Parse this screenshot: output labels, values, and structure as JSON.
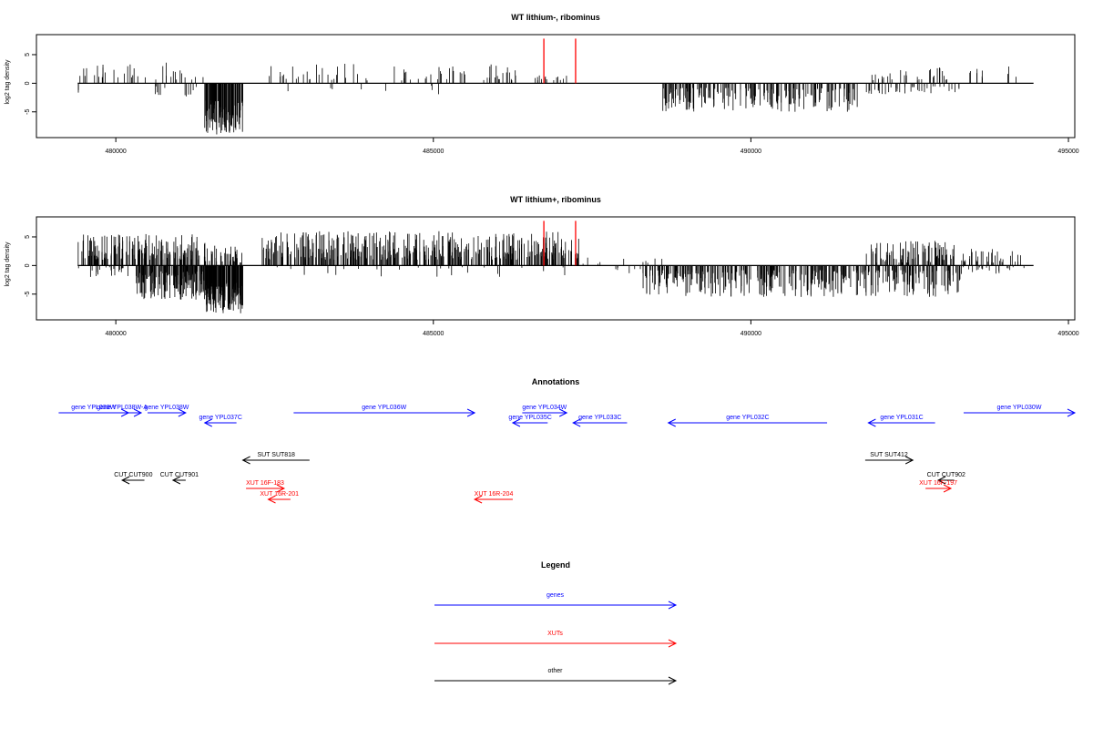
{
  "chart_data": [
    {
      "type": "bar",
      "title": "WT lithium-, ribominus",
      "ylabel": "log2 tag density",
      "xlim": [
        478750,
        495100
      ],
      "ylim": [
        -9.5,
        8.5
      ],
      "xticks": [
        480000,
        485000,
        490000,
        495000
      ],
      "yticks": [
        -5,
        0,
        5
      ],
      "grid": false,
      "highlight_color": "#ff0000",
      "bar_color": "#000000",
      "highlight_lines": [
        {
          "x": 486740,
          "y": 7.8
        },
        {
          "x": 487240,
          "y": 7.8
        }
      ],
      "density_segments": [
        {
          "x_start": 479400,
          "x_end": 480500,
          "strand": "+",
          "count": 22,
          "min": 1.0,
          "max": 3.5,
          "seed": 11
        },
        {
          "x_start": 480600,
          "x_end": 481400,
          "strand": "+",
          "count": 14,
          "min": 0.5,
          "max": 3.8,
          "seed": 12
        },
        {
          "x_start": 482400,
          "x_end": 486300,
          "strand": "+",
          "count": 70,
          "min": 0.5,
          "max": 3.5,
          "seed": 13
        },
        {
          "x_start": 486500,
          "x_end": 487200,
          "strand": "+",
          "count": 14,
          "min": 0.5,
          "max": 2.5,
          "seed": 14
        },
        {
          "x_start": 491900,
          "x_end": 493100,
          "strand": "+",
          "count": 30,
          "min": 0.5,
          "max": 2.8,
          "seed": 15
        },
        {
          "x_start": 493400,
          "x_end": 494400,
          "strand": "+",
          "count": 10,
          "min": 0.8,
          "max": 3.0,
          "seed": 16
        },
        {
          "x_start": 479400,
          "x_end": 479450,
          "strand": "-",
          "count": 2,
          "min": 1.0,
          "max": 3.0,
          "seed": 21
        },
        {
          "x_start": 480600,
          "x_end": 481300,
          "strand": "-",
          "count": 12,
          "min": 0.5,
          "max": 2.5,
          "seed": 22
        },
        {
          "x_start": 481400,
          "x_end": 482000,
          "strand": "-",
          "count": 120,
          "min": 3.0,
          "max": 9.0,
          "seed": 23
        },
        {
          "x_start": 482500,
          "x_end": 486100,
          "strand": "-",
          "count": 8,
          "min": 0.3,
          "max": 2.0,
          "seed": 24
        },
        {
          "x_start": 488600,
          "x_end": 491700,
          "strand": "-",
          "count": 200,
          "min": 0.8,
          "max": 5.0,
          "seed": 25
        },
        {
          "x_start": 491800,
          "x_end": 493300,
          "strand": "-",
          "count": 40,
          "min": 0.5,
          "max": 2.5,
          "seed": 26
        }
      ]
    },
    {
      "type": "bar",
      "title": "WT lithium+, ribominus",
      "ylabel": "log2 tag density",
      "xlim": [
        478750,
        495100
      ],
      "ylim": [
        -9.5,
        8.5
      ],
      "xticks": [
        480000,
        485000,
        490000,
        495000
      ],
      "yticks": [
        -5,
        0,
        5
      ],
      "grid": false,
      "highlight_color": "#ff0000",
      "bar_color": "#000000",
      "highlight_lines": [
        {
          "x": 486740,
          "y": 7.8
        },
        {
          "x": 487240,
          "y": 7.8
        }
      ],
      "density_segments": [
        {
          "x_start": 479400,
          "x_end": 481300,
          "strand": "+",
          "count": 170,
          "min": 1.0,
          "max": 5.5,
          "seed": 31
        },
        {
          "x_start": 481300,
          "x_end": 482000,
          "strand": "+",
          "count": 40,
          "min": 0.5,
          "max": 4.0,
          "seed": 32
        },
        {
          "x_start": 482300,
          "x_end": 487300,
          "strand": "+",
          "count": 420,
          "min": 1.0,
          "max": 6.0,
          "seed": 33
        },
        {
          "x_start": 487300,
          "x_end": 488600,
          "strand": "+",
          "count": 10,
          "min": 0.3,
          "max": 1.5,
          "seed": 34
        },
        {
          "x_start": 491800,
          "x_end": 493200,
          "strand": "+",
          "count": 90,
          "min": 0.5,
          "max": 4.5,
          "seed": 35
        },
        {
          "x_start": 493300,
          "x_end": 494400,
          "strand": "+",
          "count": 35,
          "min": 0.5,
          "max": 3.0,
          "seed": 36
        },
        {
          "x_start": 479400,
          "x_end": 480200,
          "strand": "-",
          "count": 20,
          "min": 0.3,
          "max": 2.0,
          "seed": 41
        },
        {
          "x_start": 480300,
          "x_end": 481400,
          "strand": "-",
          "count": 160,
          "min": 1.0,
          "max": 6.0,
          "seed": 42
        },
        {
          "x_start": 481400,
          "x_end": 482000,
          "strand": "-",
          "count": 140,
          "min": 3.0,
          "max": 8.5,
          "seed": 43
        },
        {
          "x_start": 482200,
          "x_end": 488600,
          "strand": "-",
          "count": 30,
          "min": 0.3,
          "max": 2.0,
          "seed": 44
        },
        {
          "x_start": 488300,
          "x_end": 493300,
          "strand": "-",
          "count": 380,
          "min": 0.8,
          "max": 5.5,
          "seed": 45
        },
        {
          "x_start": 493300,
          "x_end": 494400,
          "strand": "-",
          "count": 20,
          "min": 0.3,
          "max": 1.5,
          "seed": 46
        }
      ]
    }
  ],
  "annotations": {
    "title": "Annotations",
    "features": [
      {
        "label": "gene YPL039W",
        "start": 479100,
        "end": 480200,
        "strand": "+",
        "color": "#0000ff",
        "row": 0
      },
      {
        "label": "gene YPL038W-A",
        "start": 479800,
        "end": 480400,
        "strand": "+",
        "color": "#0000ff",
        "row": 0
      },
      {
        "label": "gene YPL038W",
        "start": 480500,
        "end": 481100,
        "strand": "+",
        "color": "#0000ff",
        "row": 0
      },
      {
        "label": "gene YPL037C",
        "start": 481400,
        "end": 481900,
        "strand": "-",
        "color": "#0000ff",
        "row": 1
      },
      {
        "label": "gene YPL036W",
        "start": 482800,
        "end": 485650,
        "strand": "+",
        "color": "#0000ff",
        "row": 0
      },
      {
        "label": "gene YPL034W",
        "start": 486400,
        "end": 487100,
        "strand": "+",
        "color": "#0000ff",
        "row": 0
      },
      {
        "label": "gene YPL035C",
        "start": 486250,
        "end": 486800,
        "strand": "-",
        "color": "#0000ff",
        "row": 1
      },
      {
        "label": "gene YPL033C",
        "start": 487200,
        "end": 488050,
        "strand": "-",
        "color": "#0000ff",
        "row": 1
      },
      {
        "label": "gene YPL032C",
        "start": 488700,
        "end": 491200,
        "strand": "-",
        "color": "#0000ff",
        "row": 1
      },
      {
        "label": "gene YPL031C",
        "start": 491850,
        "end": 492900,
        "strand": "-",
        "color": "#0000ff",
        "row": 1
      },
      {
        "label": "gene YPL030W",
        "start": 493350,
        "end": 495100,
        "strand": "+",
        "color": "#0000ff",
        "row": 0
      },
      {
        "label": "SUT SUT818",
        "start": 482000,
        "end": 483050,
        "strand": "-",
        "color": "#000000",
        "row": 2
      },
      {
        "label": "SUT SUT412",
        "start": 491800,
        "end": 492550,
        "strand": "+",
        "color": "#000000",
        "row": 2
      },
      {
        "label": "CUT CUT900",
        "start": 480100,
        "end": 480450,
        "strand": "-",
        "color": "#000000",
        "row": 3
      },
      {
        "label": "CUT CUT901",
        "start": 480900,
        "end": 481100,
        "strand": "-",
        "color": "#000000",
        "row": 3
      },
      {
        "label": "CUT CUT902",
        "start": 492950,
        "end": 493200,
        "strand": "-",
        "color": "#000000",
        "row": 3
      },
      {
        "label": "XUT 16F-183",
        "start": 482050,
        "end": 482650,
        "strand": "+",
        "color": "#ff0000",
        "row": 4
      },
      {
        "label": "XUT 16R-201",
        "start": 482400,
        "end": 482750,
        "strand": "-",
        "color": "#ff0000",
        "row": 5
      },
      {
        "label": "XUT 16R-204",
        "start": 485650,
        "end": 486250,
        "strand": "-",
        "color": "#ff0000",
        "row": 5
      },
      {
        "label": "XUT 16F-197",
        "start": 492750,
        "end": 493150,
        "strand": "+",
        "color": "#ff0000",
        "row": 4
      }
    ]
  },
  "legend": {
    "title": "Legend",
    "items": [
      {
        "label": "genes",
        "color": "#0000ff"
      },
      {
        "label": "XUTs",
        "color": "#ff0000"
      },
      {
        "label": "other",
        "color": "#000000"
      }
    ]
  }
}
